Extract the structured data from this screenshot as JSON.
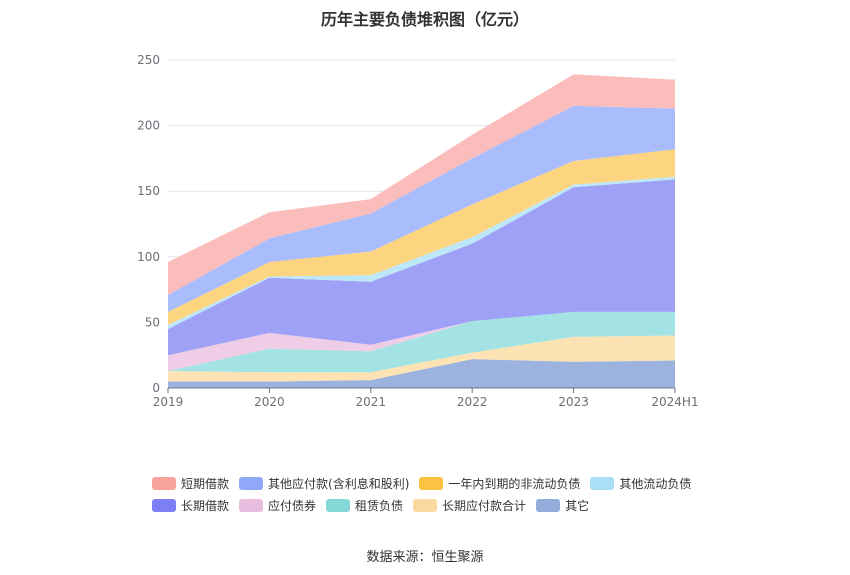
{
  "chart_data": {
    "type": "area",
    "stacked": true,
    "title": "历年主要负债堆积图（亿元）",
    "categories": [
      "2019",
      "2020",
      "2021",
      "2022",
      "2023",
      "2024H1"
    ],
    "ylim": [
      0,
      250
    ],
    "yticks": [
      0,
      50,
      100,
      150,
      200,
      250
    ],
    "grid": true,
    "series": [
      {
        "name": "其它",
        "color": "#9bb3de",
        "values": [
          5,
          5,
          6,
          22,
          20,
          21
        ]
      },
      {
        "name": "长期应付款合计",
        "color": "#fde2b4",
        "values": [
          8,
          7,
          6,
          5,
          19,
          19
        ]
      },
      {
        "name": "租赁负债",
        "color": "#a3e3e3",
        "values": [
          0,
          18,
          16,
          24,
          19,
          18
        ]
      },
      {
        "name": "应付债券",
        "color": "#f0cde6",
        "values": [
          12,
          12,
          5,
          0,
          0,
          0
        ]
      },
      {
        "name": "长期借款",
        "color": "#9fa1f6",
        "values": [
          20,
          42,
          48,
          59,
          95,
          101
        ]
      },
      {
        "name": "其他流动负债",
        "color": "#bde8f9",
        "values": [
          3,
          1,
          5,
          5,
          2,
          2
        ]
      },
      {
        "name": "一年内到期的非流动负债",
        "color": "#fdd47f",
        "values": [
          10,
          11,
          18,
          25,
          18,
          21
        ]
      },
      {
        "name": "其他应付款(含利息和股利)",
        "color": "#a9bcfb",
        "values": [
          13,
          18,
          29,
          35,
          42,
          31
        ]
      },
      {
        "name": "短期借款",
        "color": "#fbbdbb",
        "values": [
          25,
          20,
          11,
          18,
          24,
          22
        ]
      }
    ],
    "legend": [
      {
        "name": "短期借款",
        "color": "#f7a29b"
      },
      {
        "name": "其他应付款(含利息和股利)",
        "color": "#8fa8f8"
      },
      {
        "name": "一年内到期的非流动负债",
        "color": "#fbc341"
      },
      {
        "name": "其他流动负债",
        "color": "#a9dff9"
      },
      {
        "name": "长期借款",
        "color": "#7d7ff4"
      },
      {
        "name": "应付债券",
        "color": "#e9bde0"
      },
      {
        "name": "租赁负债",
        "color": "#85d8d8"
      },
      {
        "name": "长期应付款合计",
        "color": "#fdd9a2"
      },
      {
        "name": "其它",
        "color": "#93aedc"
      }
    ]
  },
  "source_text": "数据来源：恒生聚源"
}
